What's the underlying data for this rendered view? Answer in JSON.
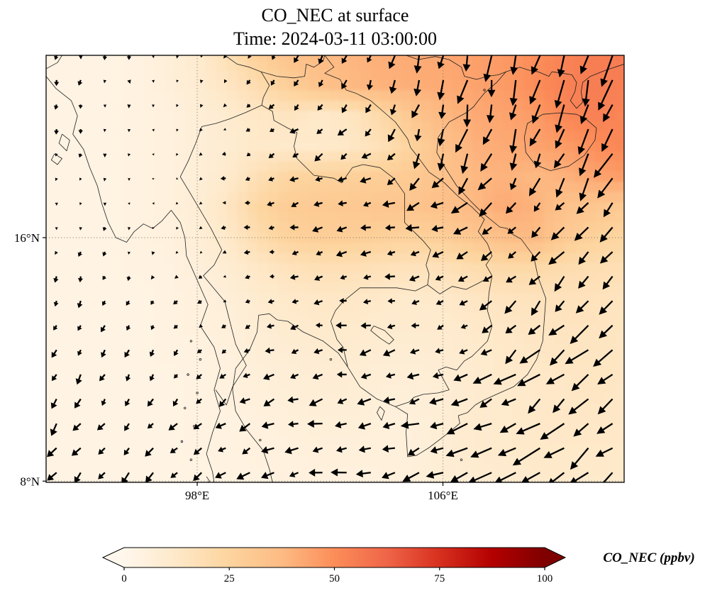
{
  "figure": {
    "title": "CO_NEC at surface",
    "subtitle": "Time: 2024-03-11 03:00:00"
  },
  "axes": {
    "extent": {
      "lon_min": 93.08,
      "lon_max": 111.9,
      "lat_min": 7.96,
      "lat_max": 21.99
    },
    "x_ticks": [
      {
        "value": 98,
        "label": "98°E"
      },
      {
        "value": 106,
        "label": "106°E"
      }
    ],
    "y_ticks": [
      {
        "value": 16,
        "label": "16°N"
      },
      {
        "value": 8,
        "label": "8°N"
      }
    ]
  },
  "colorbar": {
    "label": "CO_NEC (ppbv)",
    "vmin": 0,
    "vmax": 100,
    "ticks": [
      0,
      25,
      50,
      75,
      100
    ],
    "colormap": "OrRd",
    "extend": "both",
    "stops": [
      "#fff7ec",
      "#fee8c8",
      "#fdd49e",
      "#fdbb84",
      "#fc8d59",
      "#ef6548",
      "#d7301f",
      "#b30000",
      "#7f0000"
    ]
  },
  "chart_data": {
    "type": "heatmap",
    "title": "CO_NEC at surface",
    "subtitle": "Time: 2024-03-11 03:00:00",
    "variable": "CO_NEC",
    "units": "ppbv",
    "colormap": "OrRd",
    "vmin": 0,
    "vmax": 100,
    "lon_range": [
      93.08,
      111.9
    ],
    "lat_range": [
      7.96,
      21.99
    ],
    "legend_position": "bottom",
    "gridlines": {
      "lons": [
        98,
        106
      ],
      "lats": [
        8,
        16
      ],
      "style": "dotted"
    },
    "grid_lons": [
      93,
      94,
      95,
      96,
      97,
      98,
      99,
      100,
      101,
      102,
      103,
      104,
      105,
      106,
      107,
      108,
      109,
      110,
      111,
      112
    ],
    "grid_lats": [
      22,
      21,
      20,
      19,
      18,
      17,
      16,
      15,
      14,
      13,
      12,
      11,
      10,
      9,
      8
    ],
    "values_ppbv": [
      [
        3,
        3,
        3,
        4,
        6,
        10,
        18,
        28,
        34,
        37,
        39,
        41,
        42,
        43,
        45,
        47,
        50,
        53,
        55,
        56
      ],
      [
        3,
        3,
        3,
        4,
        6,
        9,
        14,
        20,
        28,
        34,
        38,
        40,
        41,
        42,
        44,
        46,
        50,
        54,
        55,
        54
      ],
      [
        3,
        3,
        3,
        4,
        5,
        7,
        10,
        13,
        15,
        12,
        14,
        22,
        32,
        38,
        42,
        44,
        46,
        52,
        54,
        52
      ],
      [
        3,
        3,
        3,
        4,
        5,
        7,
        9,
        12,
        11,
        11,
        13,
        17,
        26,
        34,
        40,
        42,
        44,
        46,
        50,
        52
      ],
      [
        3,
        3,
        3,
        4,
        5,
        7,
        11,
        18,
        24,
        26,
        27,
        28,
        30,
        34,
        38,
        40,
        38,
        40,
        44,
        46
      ],
      [
        3,
        3,
        3,
        4,
        5,
        8,
        14,
        24,
        29,
        30,
        31,
        32,
        33,
        35,
        38,
        42,
        40,
        34,
        32,
        30
      ],
      [
        3,
        3,
        3,
        4,
        5,
        7,
        12,
        20,
        26,
        28,
        28,
        27,
        26,
        28,
        32,
        36,
        38,
        30,
        26,
        24
      ],
      [
        3,
        3,
        3,
        4,
        4,
        6,
        9,
        13,
        16,
        18,
        18,
        17,
        16,
        17,
        20,
        22,
        22,
        20,
        19,
        18
      ],
      [
        3,
        3,
        3,
        3,
        4,
        5,
        7,
        10,
        12,
        13,
        13,
        12,
        11,
        12,
        14,
        15,
        16,
        16,
        16,
        15
      ],
      [
        3,
        3,
        3,
        3,
        4,
        5,
        6,
        8,
        10,
        11,
        11,
        10,
        10,
        10,
        12,
        13,
        14,
        15,
        15,
        14
      ],
      [
        3,
        3,
        3,
        3,
        4,
        4,
        5,
        7,
        8,
        9,
        9,
        8,
        8,
        9,
        10,
        12,
        13,
        14,
        14,
        14
      ],
      [
        3,
        3,
        3,
        3,
        3,
        4,
        5,
        6,
        7,
        8,
        8,
        7,
        7,
        8,
        10,
        11,
        12,
        13,
        14,
        13
      ],
      [
        3,
        3,
        3,
        3,
        3,
        4,
        4,
        5,
        6,
        7,
        7,
        6,
        6,
        8,
        10,
        11,
        12,
        13,
        13,
        13
      ],
      [
        3,
        3,
        3,
        3,
        3,
        4,
        4,
        5,
        5,
        6,
        6,
        6,
        6,
        8,
        10,
        11,
        12,
        12,
        12,
        12
      ],
      [
        3,
        3,
        3,
        3,
        3,
        3,
        4,
        4,
        5,
        5,
        5,
        5,
        6,
        8,
        9,
        10,
        11,
        11,
        11,
        11
      ]
    ],
    "wind_overlay": {
      "type": "quiver",
      "units": "relative wind vectors (u eastward, v northward)",
      "lons": [
        94,
        96.5,
        99,
        101.5,
        104,
        106.5,
        109,
        111.5
      ],
      "lats": [
        21,
        19,
        17,
        15,
        13,
        11,
        9
      ],
      "u": [
        [
          -0.3,
          0.2,
          -0.5,
          -1.5,
          -1.0,
          -1.5,
          -2.0,
          -3.0
        ],
        [
          -0.3,
          0.0,
          -1.0,
          -2.5,
          -2.5,
          -1.5,
          -2.5,
          -3.5
        ],
        [
          -0.2,
          0.2,
          -1.5,
          -3.0,
          -3.2,
          -4.5,
          -3.0,
          -3.5
        ],
        [
          -0.5,
          -0.5,
          -1.0,
          -2.0,
          -3.0,
          -2.5,
          -3.5,
          -4.0
        ],
        [
          -1.0,
          -1.0,
          -1.0,
          -2.5,
          -3.0,
          -2.0,
          -4.5,
          -5.0
        ],
        [
          -1.5,
          -1.5,
          -2.0,
          -3.5,
          -3.5,
          -5.0,
          -5.5,
          -5.5
        ],
        [
          -2.5,
          -2.5,
          -3.0,
          -4.0,
          -4.5,
          -5.5,
          -6.5,
          -6.0
        ]
      ],
      "v": [
        [
          -1.5,
          -1.0,
          -0.8,
          -2.0,
          -3.0,
          -6.0,
          -7.5,
          -8.0
        ],
        [
          -1.2,
          -0.5,
          -0.5,
          -1.5,
          -2.0,
          -6.5,
          -5.5,
          -7.0
        ],
        [
          -1.0,
          -0.6,
          -0.3,
          -0.8,
          -1.0,
          -2.0,
          -3.0,
          -4.5
        ],
        [
          -1.5,
          -1.0,
          -0.5,
          -0.4,
          -0.6,
          -0.8,
          -3.5,
          -4.5
        ],
        [
          -2.0,
          -1.5,
          -1.0,
          -0.5,
          -0.5,
          -1.0,
          -4.5,
          -5.0
        ],
        [
          -2.5,
          -2.0,
          -1.5,
          -1.0,
          -0.8,
          -1.5,
          -4.5,
          -5.0
        ],
        [
          -3.0,
          -2.5,
          -2.0,
          -1.0,
          -1.0,
          -2.5,
          -4.5,
          -5.0
        ]
      ]
    }
  }
}
